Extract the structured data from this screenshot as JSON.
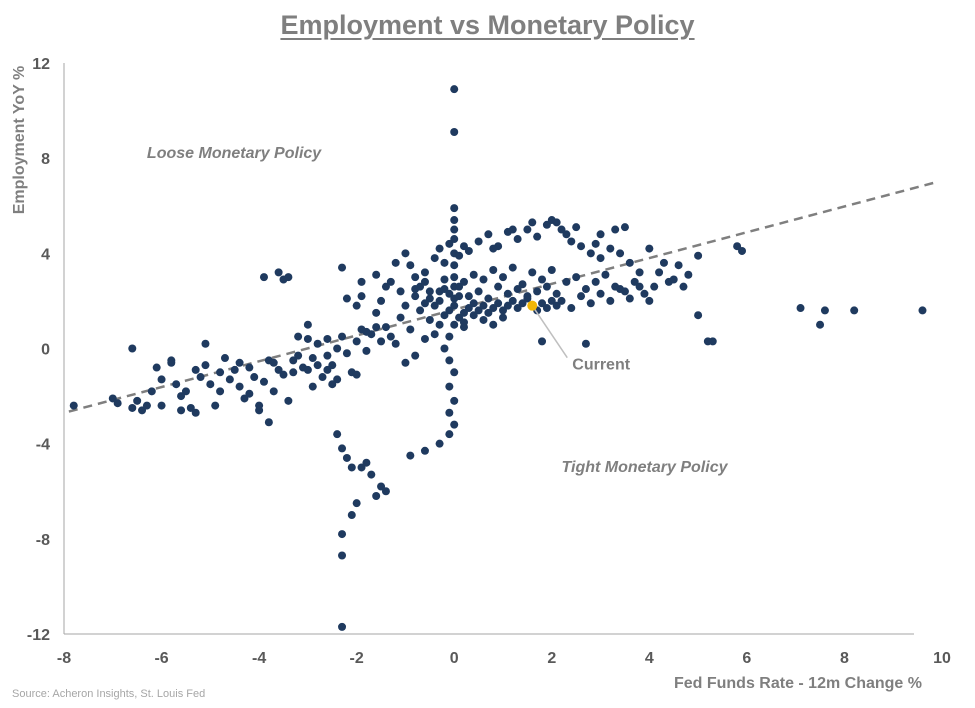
{
  "colors": {
    "points": "#1f3a5f",
    "current": "#f2b705",
    "trend": "#7f7f7f",
    "axis": "#a6a6a6",
    "text": "#7f7f7f"
  },
  "source": "Source: Acheron Insights, St. Louis Fed",
  "chart_data": {
    "type": "scatter",
    "title": "Employment vs Monetary Policy",
    "xlabel": "Fed Funds Rate - 12m Change %",
    "ylabel": "Employment YoY %",
    "xlim": [
      -8,
      10
    ],
    "ylim": [
      -12,
      12
    ],
    "xticks": [
      "-8",
      "-6",
      "-4",
      "-2",
      "0",
      "2",
      "4",
      "6",
      "8",
      "10"
    ],
    "yticks": [
      "12",
      "8",
      "4",
      "0",
      "-4",
      "-8",
      "-12"
    ],
    "grid": false,
    "annotations": [
      {
        "text": "Loose Monetary Policy",
        "x": -6.3,
        "y": 8.0
      },
      {
        "text": "Tight Monetary Policy",
        "x": 2.2,
        "y": -5.2
      }
    ],
    "trendline": {
      "style": "dashed",
      "x": [
        -7.9,
        9.9
      ],
      "y": [
        -2.65,
        7.0
      ]
    },
    "current": {
      "label": "Current",
      "x": 1.6,
      "y": 1.8
    },
    "points": [
      [
        -7.8,
        -2.4
      ],
      [
        -6.9,
        -2.3
      ],
      [
        -6.5,
        -2.2
      ],
      [
        -6.4,
        -2.6
      ],
      [
        -6.2,
        -1.8
      ],
      [
        -6.0,
        -2.4
      ],
      [
        -6.6,
        0.0
      ],
      [
        -6.1,
        -0.8
      ],
      [
        -5.8,
        -0.5
      ],
      [
        -5.7,
        -1.5
      ],
      [
        -5.6,
        -2.0
      ],
      [
        -5.4,
        -2.5
      ],
      [
        -5.3,
        -2.7
      ],
      [
        -5.2,
        -1.2
      ],
      [
        -5.1,
        -0.7
      ],
      [
        -5.0,
        -1.5
      ],
      [
        -4.9,
        -2.4
      ],
      [
        -4.8,
        -1.8
      ],
      [
        -4.7,
        -0.4
      ],
      [
        -5.8,
        -0.6
      ],
      [
        -4.6,
        -1.3
      ],
      [
        -4.5,
        -0.9
      ],
      [
        -4.4,
        -1.6
      ],
      [
        -4.3,
        -2.1
      ],
      [
        -4.2,
        -0.8
      ],
      [
        -4.1,
        -1.2
      ],
      [
        -4.0,
        -2.6
      ],
      [
        -3.9,
        -1.4
      ],
      [
        -3.8,
        -0.5
      ],
      [
        -3.7,
        -1.8
      ],
      [
        -3.6,
        -0.9
      ],
      [
        -3.5,
        -1.1
      ],
      [
        -3.4,
        -2.2
      ],
      [
        -3.3,
        -1.0
      ],
      [
        -3.2,
        -0.3
      ],
      [
        -3.1,
        -0.8
      ],
      [
        -3.0,
        -0.9
      ],
      [
        -2.9,
        -0.4
      ],
      [
        -2.8,
        0.2
      ],
      [
        -2.7,
        -1.2
      ],
      [
        -2.6,
        -0.3
      ],
      [
        -2.5,
        -0.7
      ],
      [
        -2.4,
        -1.3
      ],
      [
        -2.3,
        0.5
      ],
      [
        -2.2,
        -0.2
      ],
      [
        -2.1,
        -1.0
      ],
      [
        -2.0,
        0.3
      ],
      [
        -1.9,
        0.8
      ],
      [
        -1.8,
        -0.1
      ],
      [
        -1.7,
        0.6
      ],
      [
        -5.1,
        0.2
      ],
      [
        -3.8,
        -3.1
      ],
      [
        -4.0,
        -2.4
      ],
      [
        -3.7,
        -0.6
      ],
      [
        -3.2,
        0.5
      ],
      [
        -3.0,
        1.0
      ],
      [
        -2.9,
        -1.6
      ],
      [
        -2.6,
        -0.9
      ],
      [
        -3.6,
        3.2
      ],
      [
        -3.5,
        2.9
      ],
      [
        -3.9,
        3.0
      ],
      [
        -3.4,
        3.0
      ],
      [
        -2.3,
        3.4
      ],
      [
        -2.2,
        2.1
      ],
      [
        -2.0,
        1.8
      ],
      [
        -1.9,
        2.2
      ],
      [
        -1.6,
        1.5
      ],
      [
        -1.5,
        2.0
      ],
      [
        -1.3,
        2.8
      ],
      [
        -1.2,
        3.6
      ],
      [
        -1.0,
        4.0
      ],
      [
        -0.9,
        3.5
      ],
      [
        -0.8,
        3.0
      ],
      [
        -0.7,
        2.6
      ],
      [
        -0.6,
        3.2
      ],
      [
        -0.5,
        2.1
      ],
      [
        -0.4,
        1.8
      ],
      [
        -0.3,
        2.4
      ],
      [
        -0.2,
        2.9
      ],
      [
        -0.1,
        2.3
      ],
      [
        -2.4,
        -3.6
      ],
      [
        -2.3,
        -4.2
      ],
      [
        -2.2,
        -4.6
      ],
      [
        -2.1,
        -5.0
      ],
      [
        -1.9,
        -5.0
      ],
      [
        -1.8,
        -4.8
      ],
      [
        -1.7,
        -5.3
      ],
      [
        -1.5,
        -5.8
      ],
      [
        -1.4,
        -6.0
      ],
      [
        -1.6,
        -6.2
      ],
      [
        -2.0,
        -6.5
      ],
      [
        -2.1,
        -7.0
      ],
      [
        -2.3,
        -7.8
      ],
      [
        -2.3,
        -8.7
      ],
      [
        -2.3,
        -11.7
      ],
      [
        -0.9,
        -4.5
      ],
      [
        -0.6,
        -4.3
      ],
      [
        -0.3,
        -4.0
      ],
      [
        -0.1,
        -3.6
      ],
      [
        0.0,
        -3.2
      ],
      [
        -0.1,
        -2.7
      ],
      [
        0.0,
        -2.2
      ],
      [
        -0.1,
        -1.6
      ],
      [
        0.0,
        -1.0
      ],
      [
        -0.1,
        -0.5
      ],
      [
        -0.2,
        0.0
      ],
      [
        -0.1,
        0.5
      ],
      [
        0.0,
        1.0
      ],
      [
        -0.1,
        1.6
      ],
      [
        0.0,
        2.1
      ],
      [
        0.0,
        2.6
      ],
      [
        0.0,
        3.0
      ],
      [
        0.0,
        3.5
      ],
      [
        0.0,
        4.0
      ],
      [
        0.0,
        4.6
      ],
      [
        0.0,
        5.0
      ],
      [
        0.0,
        5.4
      ],
      [
        0.0,
        5.9
      ],
      [
        0.0,
        9.1
      ],
      [
        0.0,
        10.9
      ],
      [
        0.1,
        1.3
      ],
      [
        0.2,
        1.5
      ],
      [
        0.3,
        1.7
      ],
      [
        0.4,
        1.4
      ],
      [
        0.5,
        1.6
      ],
      [
        0.6,
        1.8
      ],
      [
        0.7,
        1.5
      ],
      [
        0.8,
        1.7
      ],
      [
        0.9,
        1.9
      ],
      [
        1.0,
        1.6
      ],
      [
        1.1,
        1.8
      ],
      [
        1.2,
        2.0
      ],
      [
        1.3,
        1.7
      ],
      [
        1.4,
        1.9
      ],
      [
        1.5,
        2.1
      ],
      [
        1.7,
        1.6
      ],
      [
        1.8,
        1.9
      ],
      [
        1.9,
        1.7
      ],
      [
        2.0,
        2.0
      ],
      [
        2.1,
        1.8
      ],
      [
        0.2,
        2.8
      ],
      [
        0.4,
        3.1
      ],
      [
        0.6,
        2.9
      ],
      [
        0.8,
        3.3
      ],
      [
        1.0,
        3.0
      ],
      [
        1.2,
        3.4
      ],
      [
        1.4,
        2.7
      ],
      [
        1.6,
        3.2
      ],
      [
        1.8,
        2.9
      ],
      [
        2.0,
        3.3
      ],
      [
        0.3,
        4.1
      ],
      [
        0.5,
        4.5
      ],
      [
        0.7,
        4.8
      ],
      [
        0.9,
        4.3
      ],
      [
        1.1,
        4.9
      ],
      [
        1.3,
        4.6
      ],
      [
        1.5,
        5.0
      ],
      [
        1.7,
        4.7
      ],
      [
        1.9,
        5.2
      ],
      [
        2.0,
        5.4
      ],
      [
        2.1,
        5.3
      ],
      [
        2.2,
        5.0
      ],
      [
        2.3,
        4.8
      ],
      [
        2.4,
        4.5
      ],
      [
        2.6,
        4.3
      ],
      [
        2.8,
        4.0
      ],
      [
        3.0,
        3.8
      ],
      [
        3.2,
        4.2
      ],
      [
        3.4,
        4.0
      ],
      [
        3.6,
        3.6
      ],
      [
        2.3,
        2.8
      ],
      [
        2.5,
        3.0
      ],
      [
        2.7,
        2.5
      ],
      [
        2.9,
        2.8
      ],
      [
        3.1,
        3.1
      ],
      [
        3.3,
        2.6
      ],
      [
        3.5,
        2.4
      ],
      [
        3.7,
        2.8
      ],
      [
        3.9,
        2.3
      ],
      [
        4.1,
        2.6
      ],
      [
        2.2,
        2.0
      ],
      [
        2.4,
        1.7
      ],
      [
        2.6,
        2.2
      ],
      [
        2.8,
        1.9
      ],
      [
        3.0,
        2.3
      ],
      [
        3.2,
        2.0
      ],
      [
        3.4,
        2.5
      ],
      [
        3.6,
        2.1
      ],
      [
        3.8,
        2.6
      ],
      [
        4.0,
        2.0
      ],
      [
        4.2,
        3.2
      ],
      [
        4.4,
        2.8
      ],
      [
        4.6,
        3.5
      ],
      [
        4.8,
        3.1
      ],
      [
        5.0,
        3.9
      ],
      [
        5.2,
        0.3
      ],
      [
        5.3,
        0.3
      ],
      [
        5.0,
        1.4
      ],
      [
        5.8,
        4.3
      ],
      [
        5.9,
        4.1
      ],
      [
        4.3,
        3.6
      ],
      [
        4.5,
        2.9
      ],
      [
        4.7,
        2.6
      ],
      [
        2.7,
        0.2
      ],
      [
        1.8,
        0.3
      ],
      [
        7.1,
        1.7
      ],
      [
        7.6,
        1.6
      ],
      [
        7.5,
        1.0
      ],
      [
        8.2,
        1.6
      ],
      [
        9.6,
        1.6
      ],
      [
        -0.5,
        1.2
      ],
      [
        -0.7,
        1.6
      ],
      [
        -0.9,
        0.8
      ],
      [
        -1.1,
        1.3
      ],
      [
        -1.3,
        0.5
      ],
      [
        -1.4,
        0.9
      ],
      [
        -0.6,
        0.4
      ],
      [
        -0.8,
        -0.3
      ],
      [
        -1.0,
        -0.6
      ],
      [
        -1.2,
        0.2
      ],
      [
        -0.4,
        0.6
      ],
      [
        -0.3,
        1.0
      ],
      [
        -0.2,
        1.4
      ],
      [
        -0.3,
        2.0
      ],
      [
        -0.5,
        2.4
      ],
      [
        -0.6,
        1.9
      ],
      [
        -0.8,
        2.2
      ],
      [
        -1.0,
        1.8
      ],
      [
        -1.1,
        2.4
      ],
      [
        -1.4,
        2.6
      ],
      [
        -0.2,
        3.6
      ],
      [
        -0.3,
        4.2
      ],
      [
        -0.4,
        3.8
      ],
      [
        -0.1,
        4.4
      ],
      [
        0.1,
        3.9
      ],
      [
        0.2,
        4.3
      ],
      [
        -0.6,
        2.8
      ],
      [
        -0.8,
        2.5
      ],
      [
        -1.6,
        3.1
      ],
      [
        -1.9,
        2.8
      ],
      [
        0.3,
        2.2
      ],
      [
        0.5,
        2.4
      ],
      [
        0.7,
        2.1
      ],
      [
        0.9,
        2.6
      ],
      [
        1.1,
        2.3
      ],
      [
        1.3,
        2.5
      ],
      [
        1.5,
        2.2
      ],
      [
        1.7,
        2.4
      ],
      [
        1.9,
        2.6
      ],
      [
        2.1,
        2.3
      ],
      [
        0.4,
        1.9
      ],
      [
        0.6,
        1.2
      ],
      [
        0.8,
        1.0
      ],
      [
        1.0,
        1.3
      ],
      [
        0.2,
        0.9
      ],
      [
        0.1,
        2.6
      ],
      [
        0.0,
        1.8
      ],
      [
        0.1,
        2.2
      ],
      [
        0.2,
        1.1
      ],
      [
        -0.2,
        2.5
      ],
      [
        3.0,
        4.8
      ],
      [
        3.3,
        5.0
      ],
      [
        3.5,
        5.1
      ],
      [
        2.5,
        5.1
      ],
      [
        1.6,
        5.3
      ],
      [
        1.2,
        5.0
      ],
      [
        0.8,
        4.2
      ],
      [
        4.0,
        4.2
      ],
      [
        2.9,
        4.4
      ],
      [
        3.8,
        3.2
      ],
      [
        -2.4,
        0.0
      ],
      [
        -2.6,
        0.4
      ],
      [
        -2.8,
        -0.7
      ],
      [
        -3.0,
        0.4
      ],
      [
        -3.3,
        -0.5
      ],
      [
        -2.5,
        -1.5
      ],
      [
        -2.0,
        -1.1
      ],
      [
        -1.8,
        0.7
      ],
      [
        -1.6,
        0.9
      ],
      [
        -1.5,
        0.3
      ],
      [
        -4.4,
        -0.6
      ],
      [
        -4.8,
        -1.0
      ],
      [
        -5.3,
        -0.9
      ],
      [
        -5.6,
        -2.6
      ],
      [
        -6.3,
        -2.4
      ],
      [
        -6.6,
        -2.5
      ],
      [
        -7.0,
        -2.1
      ],
      [
        -6.0,
        -1.3
      ],
      [
        -5.5,
        -1.8
      ],
      [
        -4.2,
        -1.9
      ]
    ]
  }
}
